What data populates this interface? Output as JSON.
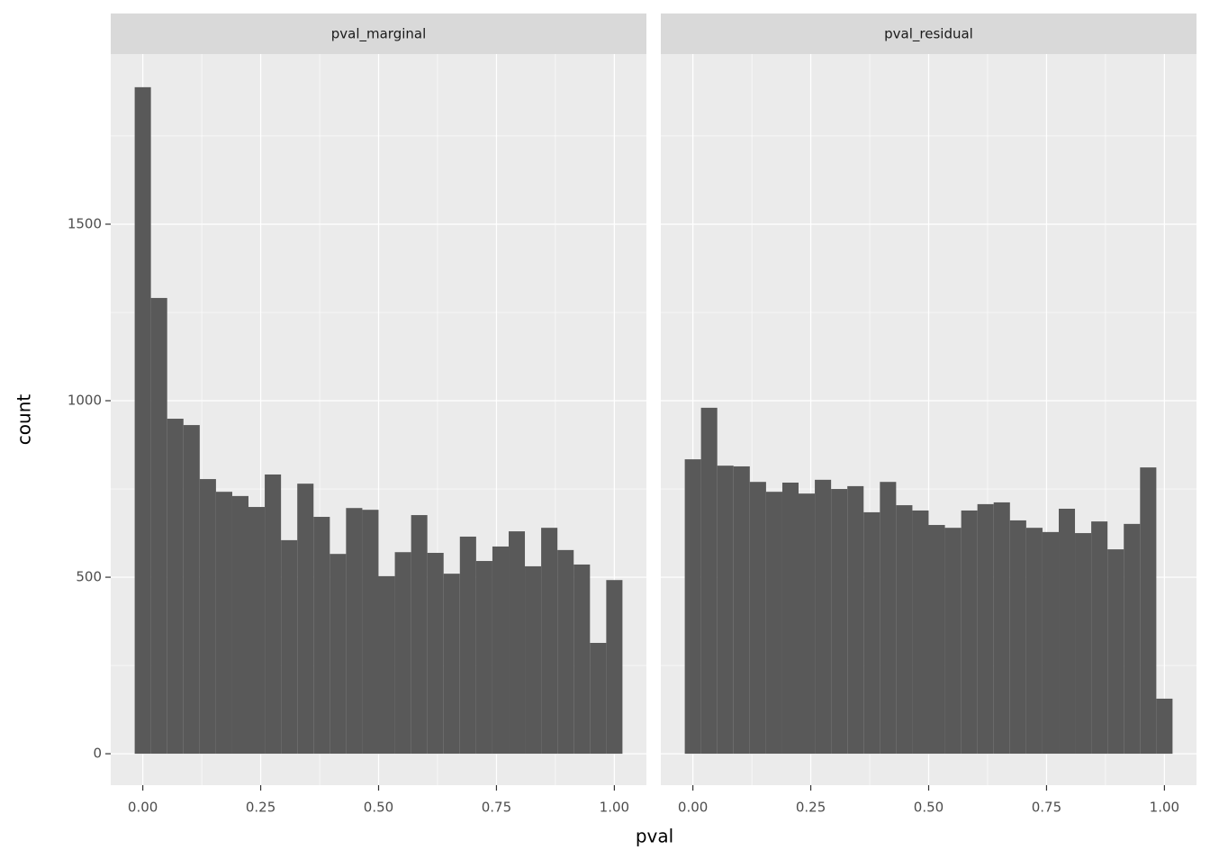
{
  "chart_data": [
    {
      "type": "histogram",
      "title": "pval_marginal",
      "x_label": "pval",
      "y_label": "count",
      "color": "#595959",
      "grid": true,
      "bins": [
        -0.0172,
        0.0172,
        0.0517,
        0.0862,
        0.1207,
        0.1552,
        0.1897,
        0.2241,
        0.2586,
        0.2931,
        0.3276,
        0.3621,
        0.3966,
        0.431,
        0.4655,
        0.5,
        0.5345,
        0.569,
        0.6034,
        0.6379,
        0.6724,
        0.7069,
        0.7414,
        0.7759,
        0.8103,
        0.8448,
        0.8793,
        0.9138,
        0.9483,
        0.9828,
        1.0172
      ],
      "counts": [
        1888,
        1291,
        949,
        931,
        778,
        742,
        730,
        699,
        791,
        605,
        765,
        671,
        566,
        696,
        691,
        503,
        571,
        676,
        569,
        510,
        615,
        546,
        587,
        630,
        531,
        640,
        577,
        536,
        314,
        492
      ],
      "xlim": [
        -0.068,
        1.068
      ],
      "ylim": [
        -89,
        1982
      ],
      "xticks": [
        {
          "value": 0,
          "label": "0.00"
        },
        {
          "value": 0.25,
          "label": "0.25"
        },
        {
          "value": 0.5,
          "label": "0.50"
        },
        {
          "value": 0.75,
          "label": "0.75"
        },
        {
          "value": 1,
          "label": "1.00"
        }
      ],
      "yticks": [
        0,
        500,
        1000,
        1500
      ]
    },
    {
      "type": "histogram",
      "title": "pval_residual",
      "color": "#595959",
      "grid": true,
      "bins": [
        -0.0172,
        0.0172,
        0.0517,
        0.0862,
        0.1207,
        0.1552,
        0.1897,
        0.2241,
        0.2586,
        0.2931,
        0.3276,
        0.3621,
        0.3966,
        0.431,
        0.4655,
        0.5,
        0.5345,
        0.569,
        0.6034,
        0.6379,
        0.6724,
        0.7069,
        0.7414,
        0.7759,
        0.8103,
        0.8448,
        0.8793,
        0.9138,
        0.9483,
        0.9828,
        1.0172
      ],
      "counts": [
        834,
        980,
        816,
        814,
        770,
        742,
        768,
        737,
        776,
        750,
        758,
        684,
        770,
        704,
        689,
        648,
        640,
        689,
        707,
        712,
        661,
        640,
        628,
        694,
        625,
        658,
        579,
        651,
        811,
        156
      ],
      "xlim": [
        -0.068,
        1.068
      ],
      "ylim": [
        -89,
        1982
      ],
      "xticks": [
        {
          "value": 0,
          "label": "0.00"
        },
        {
          "value": 0.25,
          "label": "0.25"
        },
        {
          "value": 0.5,
          "label": "0.50"
        },
        {
          "value": 0.75,
          "label": "0.75"
        },
        {
          "value": 1,
          "label": "1.00"
        }
      ],
      "yticks": [
        0,
        500,
        1000,
        1500
      ]
    }
  ]
}
